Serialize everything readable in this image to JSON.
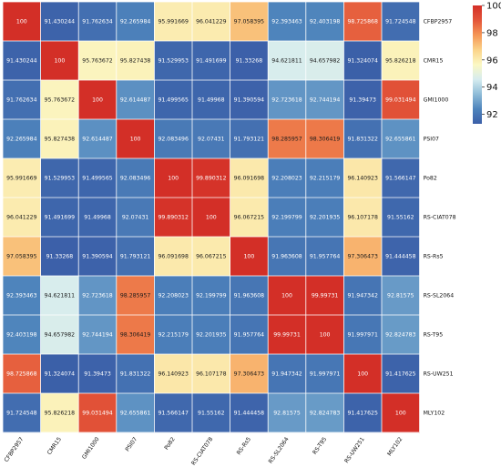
{
  "chart_data": {
    "type": "heatmap",
    "title": "",
    "xlabel": "",
    "ylabel": "",
    "labels": [
      "CFBP2957",
      "CMR15",
      "GMI1000",
      "PSI07",
      "Po82",
      "RS-CIAT078",
      "RS-Rs5",
      "RS-SL2064",
      "RS-T95",
      "RS-UW251",
      "MLY102"
    ],
    "matrix": [
      [
        "100",
        "91.430244",
        "91.762634",
        "92.265984",
        "95.991669",
        "96.041229",
        "97.058395",
        "92.393463",
        "92.403198",
        "98.725868",
        "91.724548"
      ],
      [
        "91.430244",
        "100",
        "95.763672",
        "95.827438",
        "91.529953",
        "91.491699",
        "91.33268",
        "94.621811",
        "94.657982",
        "91.324074",
        "95.826218"
      ],
      [
        "91.762634",
        "95.763672",
        "100",
        "92.614487",
        "91.499565",
        "91.49968",
        "91.390594",
        "92.723618",
        "92.744194",
        "91.39473",
        "99.031494"
      ],
      [
        "92.265984",
        "95.827438",
        "92.614487",
        "100",
        "92.083496",
        "92.07431",
        "91.793121",
        "98.285957",
        "98.306419",
        "91.831322",
        "92.655861"
      ],
      [
        "95.991669",
        "91.529953",
        "91.499565",
        "92.083496",
        "100",
        "99.890312",
        "96.091698",
        "92.208023",
        "92.215179",
        "96.140923",
        "91.566147"
      ],
      [
        "96.041229",
        "91.491699",
        "91.49968",
        "92.07431",
        "99.890312",
        "100",
        "96.067215",
        "92.199799",
        "92.201935",
        "96.107178",
        "91.55162"
      ],
      [
        "97.058395",
        "91.33268",
        "91.390594",
        "91.793121",
        "96.091698",
        "96.067215",
        "100",
        "91.963608",
        "91.957764",
        "97.306473",
        "91.444458"
      ],
      [
        "92.393463",
        "94.621811",
        "92.723618",
        "98.285957",
        "92.208023",
        "92.199799",
        "91.963608",
        "100",
        "99.99731",
        "91.947342",
        "92.81575"
      ],
      [
        "92.403198",
        "94.657982",
        "92.744194",
        "98.306419",
        "92.215179",
        "92.201935",
        "91.957764",
        "99.99731",
        "100",
        "91.997971",
        "92.824783"
      ],
      [
        "98.725868",
        "91.324074",
        "91.39473",
        "91.831322",
        "96.140923",
        "96.107178",
        "97.306473",
        "91.947342",
        "91.997971",
        "100",
        "91.417625"
      ],
      [
        "91.724548",
        "95.826218",
        "99.031494",
        "92.655861",
        "91.566147",
        "91.55162",
        "91.444458",
        "92.81575",
        "92.824783",
        "91.417625",
        "100"
      ]
    ],
    "colorbar": {
      "ticks": [
        "100",
        "98",
        "96",
        "94",
        "92"
      ],
      "range": [
        91.3,
        100
      ]
    },
    "colorscale": [
      "#3b5fa8",
      "#4e84bc",
      "#8fbcd8",
      "#d6ecef",
      "#fbf8c4",
      "#fbd389",
      "#f59656",
      "#e35539",
      "#d32f27"
    ]
  }
}
